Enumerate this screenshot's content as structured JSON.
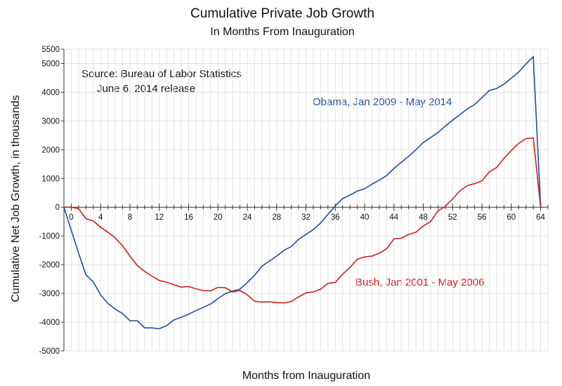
{
  "chart_data": {
    "type": "line",
    "title": "Cumulative Private Job Growth",
    "subtitle": "In Months From Inauguration",
    "xlabel": "Months from Inauguration",
    "ylabel": "Cumulative Net Job Growth, in thousands",
    "xlim": [
      -1,
      65
    ],
    "ylim": [
      -5000,
      5500
    ],
    "x_ticks": [
      0,
      4,
      8,
      12,
      16,
      20,
      24,
      28,
      32,
      36,
      40,
      44,
      48,
      52,
      56,
      60,
      64
    ],
    "y_ticks": [
      -5000,
      -4000,
      -3000,
      -2000,
      -1000,
      0,
      1000,
      2000,
      3000,
      4000,
      5000,
      5500
    ],
    "grid": true,
    "source_lines": [
      "Source:  Bureau of Labor Statistics",
      "June 6, 2014 release"
    ],
    "series": [
      {
        "name": "Obama, Jan 2009 - May 2014",
        "color": "#1f4e9e",
        "x": [
          -1,
          0,
          1,
          2,
          3,
          4,
          5,
          6,
          7,
          8,
          9,
          10,
          11,
          12,
          13,
          14,
          15,
          16,
          17,
          18,
          19,
          20,
          21,
          22,
          23,
          24,
          25,
          26,
          27,
          28,
          29,
          30,
          31,
          32,
          33,
          34,
          35,
          36,
          37,
          38,
          39,
          40,
          41,
          42,
          43,
          44,
          45,
          46,
          47,
          48,
          49,
          50,
          51,
          52,
          53,
          54,
          55,
          56,
          57,
          58,
          59,
          60,
          61,
          62,
          63,
          64
        ],
        "values": [
          0,
          -800,
          -1600,
          -2350,
          -2600,
          -3050,
          -3350,
          -3550,
          -3700,
          -3950,
          -3950,
          -4200,
          -4200,
          -4230,
          -4120,
          -3920,
          -3830,
          -3720,
          -3600,
          -3480,
          -3370,
          -3180,
          -3010,
          -2920,
          -2850,
          -2620,
          -2370,
          -2050,
          -1880,
          -1700,
          -1500,
          -1370,
          -1120,
          -950,
          -780,
          -550,
          -250,
          50,
          300,
          420,
          560,
          640,
          800,
          940,
          1100,
          1350,
          1560,
          1770,
          2000,
          2250,
          2420,
          2600,
          2820,
          3030,
          3220,
          3420,
          3570,
          3810,
          4060,
          4130,
          4280,
          4490,
          4700,
          4980,
          5240,
          0
        ]
      },
      {
        "name": "Bush, Jan 2001 - May 2006",
        "color": "#c8201e",
        "x": [
          -1,
          0,
          1,
          2,
          3,
          4,
          5,
          6,
          7,
          8,
          9,
          10,
          11,
          12,
          13,
          14,
          15,
          16,
          17,
          18,
          19,
          20,
          21,
          22,
          23,
          24,
          25,
          26,
          27,
          28,
          29,
          30,
          31,
          32,
          33,
          34,
          35,
          36,
          37,
          38,
          39,
          40,
          41,
          42,
          43,
          44,
          45,
          46,
          47,
          48,
          49,
          50,
          51,
          52,
          53,
          54,
          55,
          56,
          57,
          58,
          59,
          60,
          61,
          62,
          63,
          64
        ],
        "values": [
          0,
          0,
          -50,
          -400,
          -480,
          -700,
          -870,
          -1070,
          -1350,
          -1700,
          -2030,
          -2230,
          -2400,
          -2550,
          -2610,
          -2700,
          -2780,
          -2760,
          -2840,
          -2900,
          -2910,
          -2790,
          -2800,
          -2950,
          -2900,
          -3050,
          -3270,
          -3300,
          -3290,
          -3320,
          -3330,
          -3280,
          -3120,
          -2980,
          -2950,
          -2850,
          -2650,
          -2620,
          -2330,
          -2100,
          -1810,
          -1730,
          -1700,
          -1600,
          -1450,
          -1100,
          -1080,
          -950,
          -870,
          -650,
          -500,
          -130,
          30,
          290,
          570,
          750,
          820,
          920,
          1230,
          1380,
          1700,
          1970,
          2220,
          2390,
          2410,
          0
        ]
      }
    ]
  }
}
